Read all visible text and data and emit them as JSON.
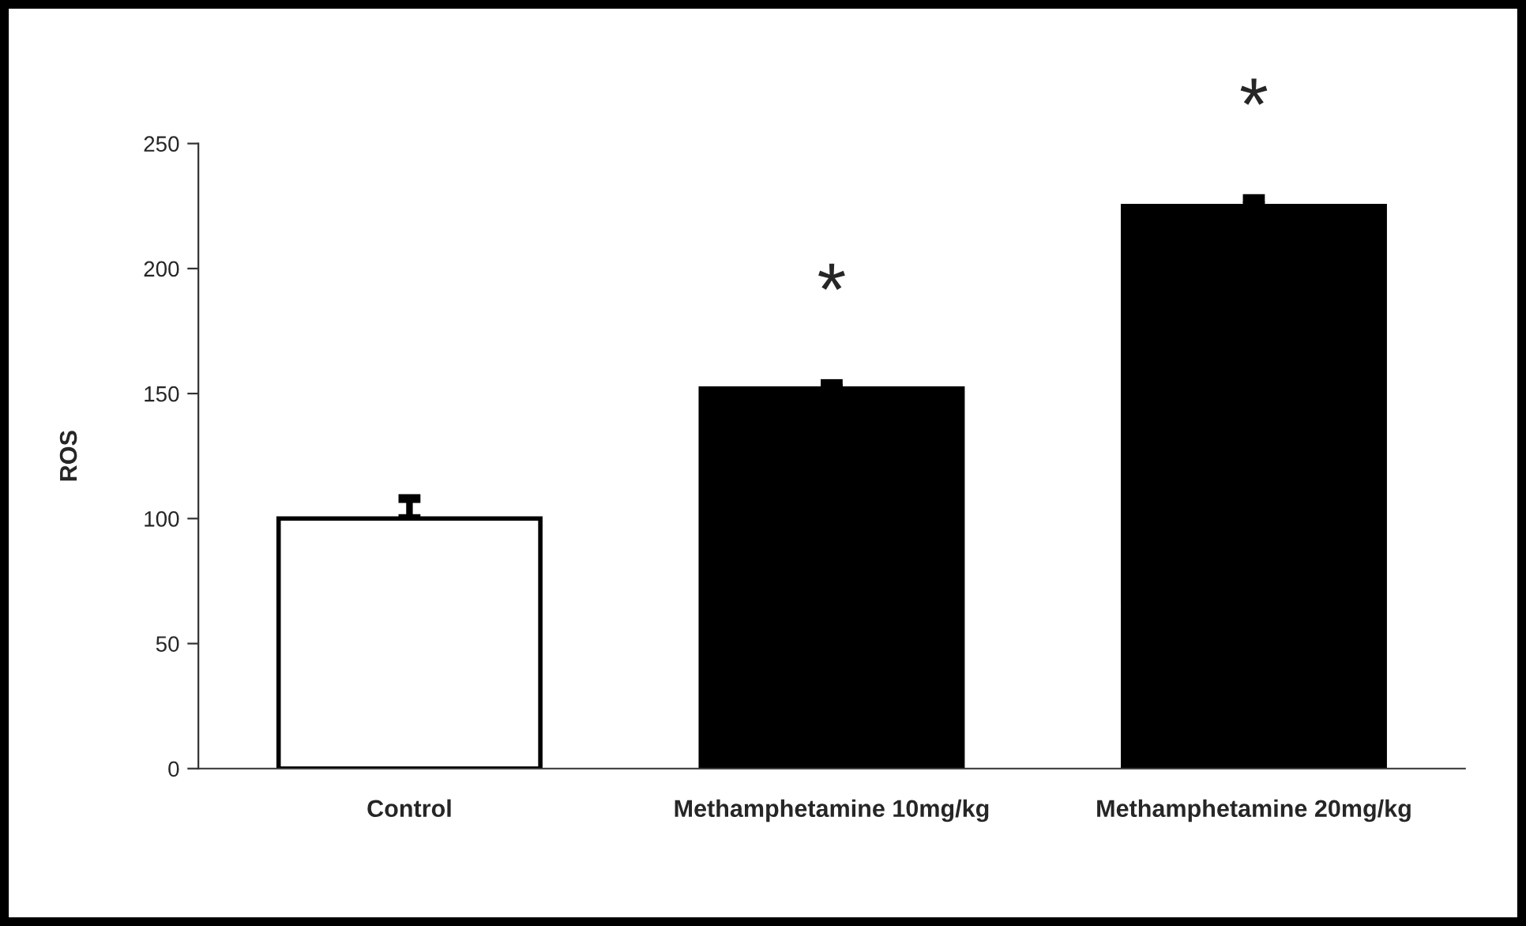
{
  "chart_data": {
    "type": "bar",
    "ylabel": "ROS",
    "categories": [
      "Control",
      "Methamphetamine 10mg/kg",
      "Methamphetamine 20mg/kg"
    ],
    "values": [
      100,
      152,
      225
    ],
    "colors": [
      "#ffffff",
      "#000000",
      "#000000"
    ],
    "errors": [
      8,
      2,
      3
    ],
    "ylim": [
      0,
      250
    ],
    "yticks": [
      0,
      50,
      100,
      150,
      200,
      250
    ],
    "grid": false,
    "legend": false,
    "annotations": [
      {
        "text": "*",
        "x": "Methamphetamine 10mg/kg",
        "y": 154
      },
      {
        "text": "*",
        "x": "Methamphetamine 20mg/kg",
        "y": 228
      }
    ]
  }
}
